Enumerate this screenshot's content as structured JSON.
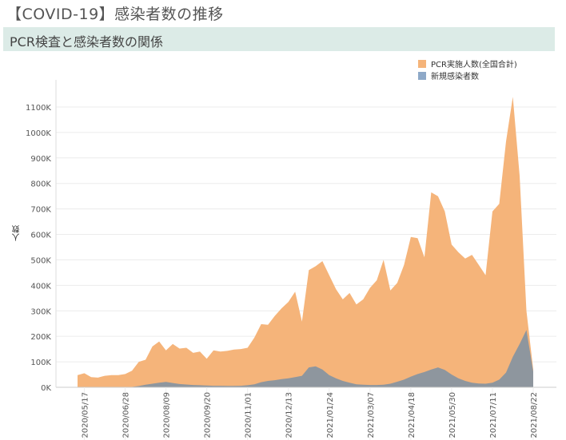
{
  "page": {
    "title": "【COVID-19】感染者数の推移",
    "section_title": "PCR検査と感染者数の関係"
  },
  "legend": [
    {
      "label": "PCR実施人数(全国合計)",
      "color": "#f5b47a"
    },
    {
      "label": "新規感染者数",
      "color": "#8ea9c8"
    }
  ],
  "chart_data": {
    "type": "area",
    "ylabel": "人数",
    "yticks": [
      "0K",
      "100K",
      "200K",
      "300K",
      "400K",
      "500K",
      "600K",
      "700K",
      "800K",
      "900K",
      "1000K",
      "1100K"
    ],
    "xticks": [
      "2020/05/17",
      "2020/06/28",
      "2020/08/09",
      "2020/09/20",
      "2020/11/01",
      "2020/12/13",
      "2021/01/24",
      "2021/03/07",
      "2021/04/18",
      "2021/05/30",
      "2021/07/11",
      "2021/08/22"
    ],
    "ylim": [
      0,
      1150000
    ],
    "x": [
      "2020/05/10",
      "2020/05/17",
      "2020/05/24",
      "2020/05/31",
      "2020/06/07",
      "2020/06/14",
      "2020/06/21",
      "2020/06/28",
      "2020/07/05",
      "2020/07/12",
      "2020/07/19",
      "2020/07/26",
      "2020/08/02",
      "2020/08/09",
      "2020/08/16",
      "2020/08/23",
      "2020/08/30",
      "2020/09/06",
      "2020/09/13",
      "2020/09/20",
      "2020/09/27",
      "2020/10/04",
      "2020/10/11",
      "2020/10/18",
      "2020/10/25",
      "2020/11/01",
      "2020/11/08",
      "2020/11/15",
      "2020/11/22",
      "2020/11/29",
      "2020/12/06",
      "2020/12/13",
      "2020/12/20",
      "2020/12/27",
      "2021/01/03",
      "2021/01/10",
      "2021/01/17",
      "2021/01/24",
      "2021/01/31",
      "2021/02/07",
      "2021/02/14",
      "2021/02/21",
      "2021/02/28",
      "2021/03/07",
      "2021/03/14",
      "2021/03/21",
      "2021/03/28",
      "2021/04/04",
      "2021/04/11",
      "2021/04/18",
      "2021/04/25",
      "2021/05/02",
      "2021/05/09",
      "2021/05/16",
      "2021/05/23",
      "2021/05/30",
      "2021/06/06",
      "2021/06/13",
      "2021/06/20",
      "2021/06/27",
      "2021/07/04",
      "2021/07/11",
      "2021/07/18",
      "2021/07/25",
      "2021/08/01",
      "2021/08/08",
      "2021/08/15",
      "2021/08/22"
    ],
    "series": [
      {
        "name": "PCR実施人数(全国合計)",
        "color": "#f5b47a",
        "values": [
          48000,
          55000,
          40000,
          38000,
          45000,
          48000,
          48000,
          52000,
          65000,
          100000,
          108000,
          160000,
          180000,
          145000,
          170000,
          152000,
          155000,
          135000,
          140000,
          112000,
          145000,
          140000,
          143000,
          148000,
          150000,
          155000,
          195000,
          248000,
          245000,
          280000,
          310000,
          335000,
          375000,
          258000,
          460000,
          475000,
          495000,
          440000,
          385000,
          345000,
          370000,
          325000,
          345000,
          390000,
          420000,
          500000,
          380000,
          410000,
          480000,
          590000,
          585000,
          510000,
          765000,
          750000,
          690000,
          560000,
          530000,
          505000,
          520000,
          480000,
          440000,
          690000,
          720000,
          965000,
          1140000,
          830000,
          300000,
          70000
        ]
      },
      {
        "name": "新規感染者数",
        "color": "#8ea9c8",
        "values": [
          600,
          400,
          300,
          300,
          300,
          400,
          500,
          700,
          1500,
          5000,
          10000,
          14000,
          18000,
          21000,
          17000,
          13000,
          11000,
          9000,
          8000,
          7000,
          6000,
          6000,
          5500,
          5500,
          6000,
          8000,
          12000,
          20000,
          25000,
          28000,
          32000,
          35000,
          40000,
          45000,
          78000,
          82000,
          70000,
          48000,
          35000,
          25000,
          18000,
          12000,
          10000,
          9000,
          9000,
          10000,
          14000,
          22000,
          30000,
          42000,
          52000,
          60000,
          70000,
          78000,
          68000,
          50000,
          35000,
          25000,
          18000,
          15000,
          14000,
          18000,
          30000,
          58000,
          120000,
          170000,
          225000,
          62000
        ]
      }
    ]
  }
}
